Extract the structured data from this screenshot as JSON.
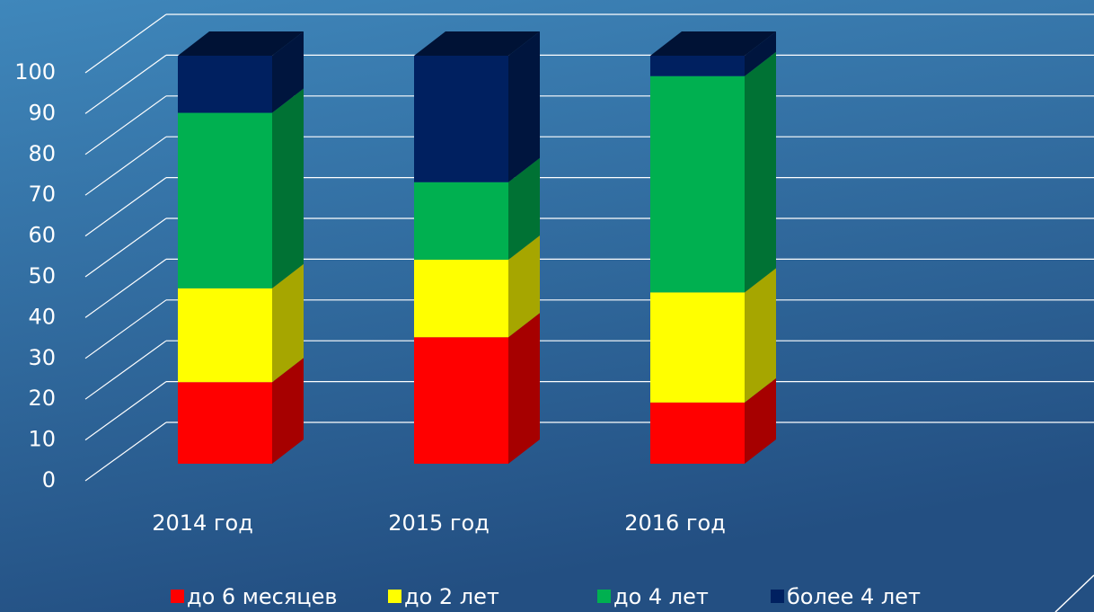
{
  "chart_data": {
    "type": "bar",
    "stacked": true,
    "categories": [
      "2014 год",
      "2015 год",
      "2016 год"
    ],
    "series": [
      {
        "name": "до 6 месяцев",
        "color": "#ff0000",
        "values": [
          20,
          31,
          15
        ]
      },
      {
        "name": "до 2 лет",
        "color": "#ffff00",
        "values": [
          23,
          19,
          27
        ]
      },
      {
        "name": "до 4 лет",
        "color": "#00b050",
        "values": [
          43,
          19,
          53
        ]
      },
      {
        "name": "более 4 лет",
        "color": "#002060",
        "values": [
          14,
          31,
          5
        ]
      }
    ],
    "ylim": [
      0,
      100
    ],
    "yticks": [
      0,
      10,
      20,
      30,
      40,
      50,
      60,
      70,
      80,
      90,
      100
    ],
    "grid": true,
    "legend": "bottom"
  }
}
